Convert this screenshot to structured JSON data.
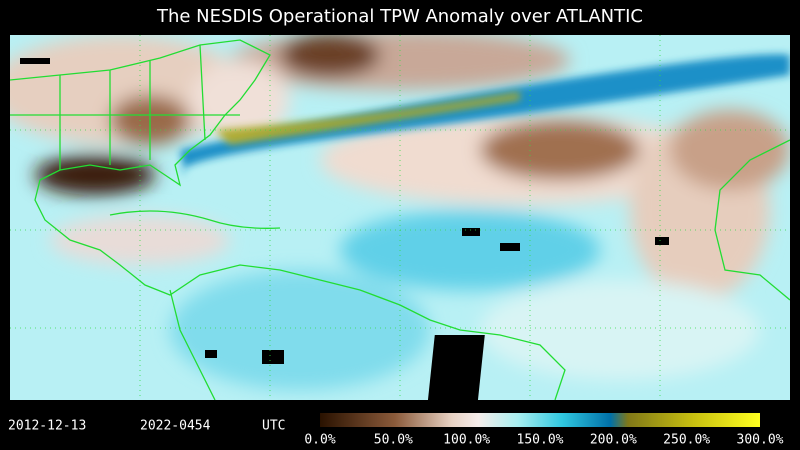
{
  "title": "The NESDIS  Operational  TPW Anomaly over ATLANTIC",
  "timestamp": {
    "date": "2012-12-13",
    "time": "2022-0454",
    "zone": "UTC"
  },
  "colorbar": {
    "ticks": [
      {
        "value": 0,
        "label": "0.0%"
      },
      {
        "value": 50,
        "label": "50.0%"
      },
      {
        "value": 100,
        "label": "100.0%"
      },
      {
        "value": 150,
        "label": "150.0%"
      },
      {
        "value": 200,
        "label": "200.0%"
      },
      {
        "value": 250,
        "label": "250.0%"
      },
      {
        "value": 300,
        "label": "300.0%"
      }
    ]
  }
}
